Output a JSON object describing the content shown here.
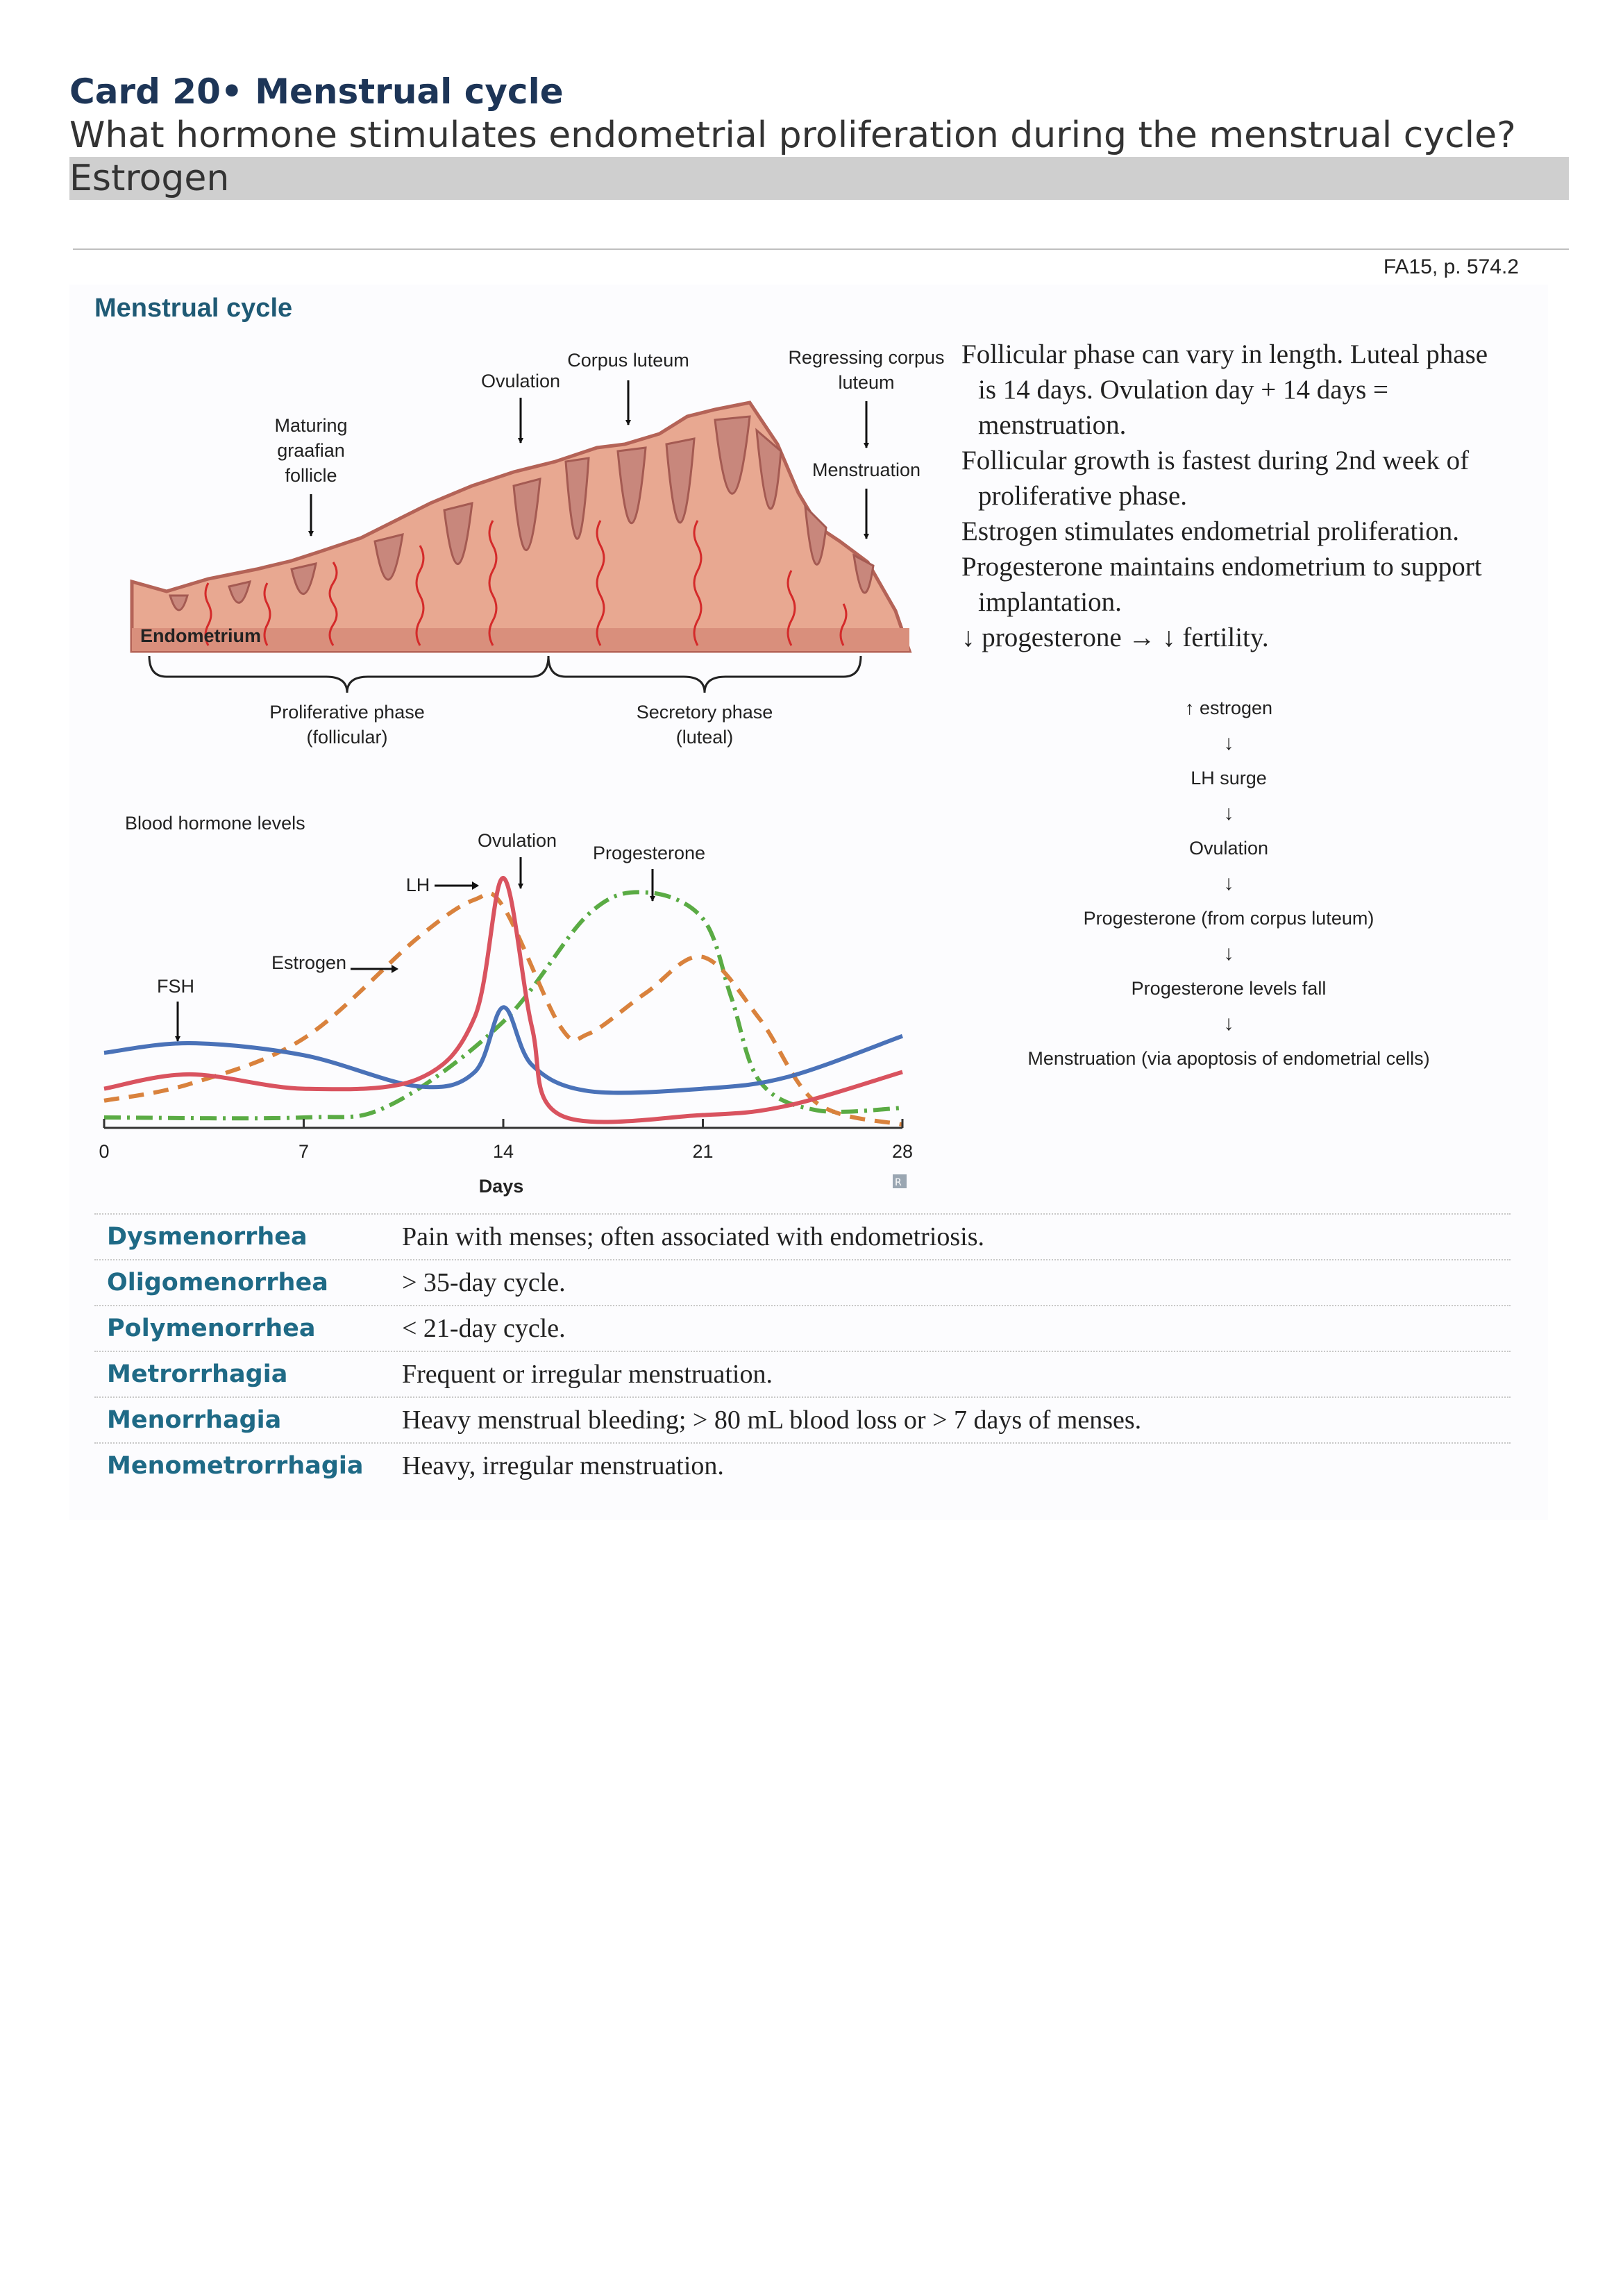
{
  "card": {
    "title": "Card 20• Menstrual cycle",
    "question": "What hormone stimulates endometrial proliferation during the menstrual cycle?",
    "answer": "Estrogen"
  },
  "reference": "FA15, p. 574.2",
  "figure": {
    "title": "Menstrual cycle",
    "diagram_labels": {
      "maturing_follicle": [
        "Maturing",
        "graafian",
        "follicle"
      ],
      "ovulation": "Ovulation",
      "corpus_luteum": "Corpus luteum",
      "regressing": [
        "Regressing corpus",
        "luteum"
      ],
      "menstruation": "Menstruation",
      "endometrium": "Endometrium",
      "proliferative": [
        "Proliferative phase",
        "(follicular)"
      ],
      "secretory": [
        "Secretory phase",
        "(luteal)"
      ]
    },
    "chart_labels": {
      "heading": "Blood hormone levels",
      "ovulation": "Ovulation",
      "progesterone": "Progesterone",
      "lh": "LH",
      "estrogen": "Estrogen",
      "fsh": "FSH",
      "xlabel": "Days"
    }
  },
  "chart_data": {
    "type": "line",
    "xlabel": "Days",
    "xlim": [
      0,
      28
    ],
    "xticks": [
      "0",
      "7",
      "14",
      "21",
      "28"
    ],
    "ylim": [
      0,
      1
    ],
    "grid": false,
    "series": [
      {
        "name": "FSH",
        "color": "#4a72b8",
        "style": "solid",
        "x": [
          0,
          3,
          7,
          11,
          13,
          14,
          15,
          17,
          21,
          24,
          28
        ],
        "y": [
          0.27,
          0.31,
          0.26,
          0.13,
          0.19,
          0.46,
          0.22,
          0.11,
          0.12,
          0.17,
          0.34
        ]
      },
      {
        "name": "LH",
        "color": "#d9535f",
        "style": "solid",
        "x": [
          0,
          3,
          7,
          11,
          13,
          14,
          15,
          16,
          21,
          24,
          28
        ],
        "y": [
          0.12,
          0.18,
          0.12,
          0.16,
          0.42,
          1.0,
          0.38,
          0.01,
          0.01,
          0.05,
          0.19
        ]
      },
      {
        "name": "Estrogen",
        "color": "#d9823d",
        "style": "dashed",
        "x": [
          0,
          3,
          7,
          11,
          13,
          14,
          16,
          17,
          19,
          21,
          23,
          25,
          28
        ],
        "y": [
          0.07,
          0.14,
          0.33,
          0.75,
          0.91,
          0.88,
          0.38,
          0.35,
          0.52,
          0.67,
          0.41,
          0.06,
          -0.03
        ]
      },
      {
        "name": "Progesterone",
        "color": "#5aab44",
        "style": "dash-dot",
        "x": [
          0,
          7,
          10,
          14,
          17,
          19,
          21,
          22,
          23,
          25,
          28
        ],
        "y": [
          0.0,
          0.0,
          0.05,
          0.4,
          0.85,
          0.94,
          0.83,
          0.5,
          0.15,
          0.03,
          0.04
        ]
      }
    ]
  },
  "notes": [
    "Follicular phase can vary in length. Luteal phase is 14 days. Ovulation day + 14 days = menstruation.",
    "Follicular growth is fastest during 2nd week of proliferative phase.",
    "Estrogen stimulates endometrial proliferation.",
    "Progesterone maintains endometrium to support implantation.",
    "↓ progesterone → ↓ fertility."
  ],
  "flow": {
    "steps": [
      "↑ estrogen",
      "LH surge",
      "Ovulation",
      "Progesterone (from corpus luteum)",
      "Progesterone levels fall",
      "Menstruation (via apoptosis of endometrial cells)"
    ],
    "arrow": "↓"
  },
  "definitions": [
    {
      "term": "Dysmenorrhea",
      "text": "Pain with menses; often associated with endometriosis."
    },
    {
      "term": "Oligomenorrhea",
      "text": "> 35-day cycle."
    },
    {
      "term": "Polymenorrhea",
      "text": "< 21-day cycle."
    },
    {
      "term": "Metrorrhagia",
      "text": "Frequent or irregular menstruation."
    },
    {
      "term": "Menorrhagia",
      "text": "Heavy menstrual bleeding; > 80 mL blood loss or > 7 days of menses."
    },
    {
      "term": "Menometrorrhagia",
      "text": "Heavy, irregular menstruation."
    }
  ]
}
